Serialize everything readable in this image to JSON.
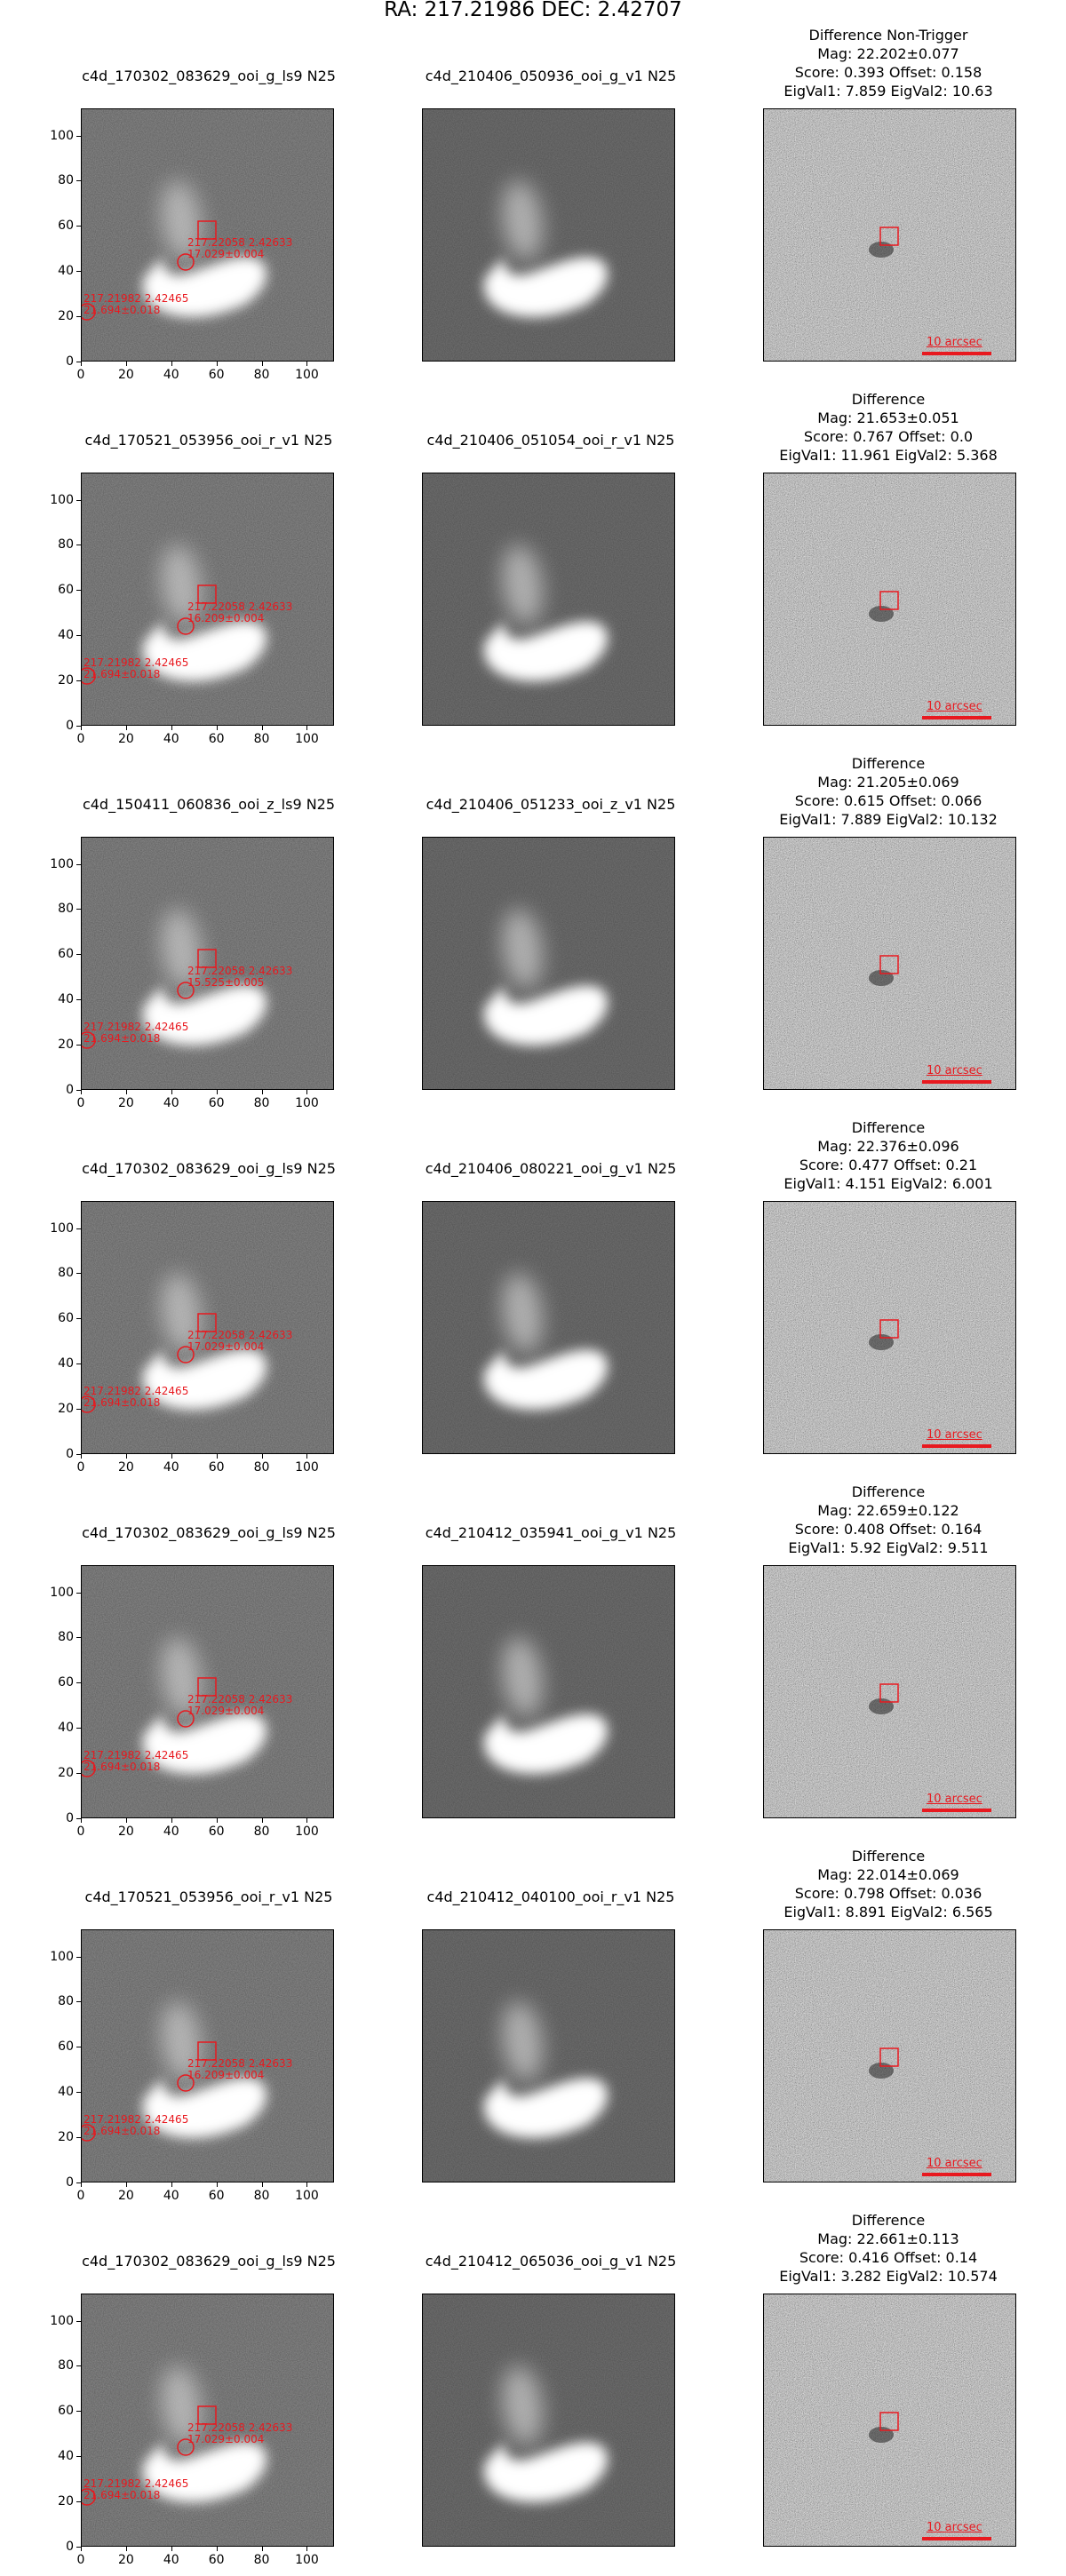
{
  "title": "RA: 217.21986 DEC: 2.42707",
  "colors": {
    "overlay": "#e8191f",
    "axis": "#000000",
    "background": "#ffffff"
  },
  "axis_ticks": {
    "y": [
      "100",
      "80",
      "60",
      "40",
      "20",
      "0"
    ],
    "x": [
      "0",
      "20",
      "40",
      "60",
      "80",
      "100"
    ]
  },
  "overlay": {
    "candidate_coord": "217.22058 2.42633",
    "host_coord": "217.21982 2.42465",
    "host_mag": "21.694±0.018",
    "scale_label": "10 arcsec"
  },
  "rows": [
    {
      "ref_title": "c4d_170302_083629_ooi_g_ls9 N25",
      "new_title": "c4d_210406_050936_ooi_g_v1 N25",
      "diff_line1": "Difference Non-Trigger",
      "diff_line2": "Mag: 22.202±0.077",
      "diff_line3": "Score: 0.393 Offset: 0.158",
      "diff_line4": "EigVal1: 7.859 EigVal2: 10.63",
      "cand_mag": "17.029±0.004"
    },
    {
      "ref_title": "c4d_170521_053956_ooi_r_v1 N25",
      "new_title": "c4d_210406_051054_ooi_r_v1 N25",
      "diff_line1": "Difference",
      "diff_line2": "Mag: 21.653±0.051",
      "diff_line3": "Score: 0.767 Offset: 0.0",
      "diff_line4": "EigVal1: 11.961 EigVal2: 5.368",
      "cand_mag": "16.209±0.004"
    },
    {
      "ref_title": "c4d_150411_060836_ooi_z_ls9 N25",
      "new_title": "c4d_210406_051233_ooi_z_v1 N25",
      "diff_line1": "Difference",
      "diff_line2": "Mag: 21.205±0.069",
      "diff_line3": "Score: 0.615 Offset: 0.066",
      "diff_line4": "EigVal1: 7.889 EigVal2: 10.132",
      "cand_mag": "15.525±0.005"
    },
    {
      "ref_title": "c4d_170302_083629_ooi_g_ls9 N25",
      "new_title": "c4d_210406_080221_ooi_g_v1 N25",
      "diff_line1": "Difference",
      "diff_line2": "Mag: 22.376±0.096",
      "diff_line3": "Score: 0.477 Offset: 0.21",
      "diff_line4": "EigVal1: 4.151 EigVal2: 6.001",
      "cand_mag": "17.029±0.004"
    },
    {
      "ref_title": "c4d_170302_083629_ooi_g_ls9 N25",
      "new_title": "c4d_210412_035941_ooi_g_v1 N25",
      "diff_line1": "Difference",
      "diff_line2": "Mag: 22.659±0.122",
      "diff_line3": "Score: 0.408 Offset: 0.164",
      "diff_line4": "EigVal1: 5.92 EigVal2: 9.511",
      "cand_mag": "17.029±0.004"
    },
    {
      "ref_title": "c4d_170521_053956_ooi_r_v1 N25",
      "new_title": "c4d_210412_040100_ooi_r_v1 N25",
      "diff_line1": "Difference",
      "diff_line2": "Mag: 22.014±0.069",
      "diff_line3": "Score: 0.798 Offset: 0.036",
      "diff_line4": "EigVal1: 8.891 EigVal2: 6.565",
      "cand_mag": "16.209±0.004"
    },
    {
      "ref_title": "c4d_170302_083629_ooi_g_ls9 N25",
      "new_title": "c4d_210412_065036_ooi_g_v1 N25",
      "diff_line1": "Difference",
      "diff_line2": "Mag: 22.661±0.113",
      "diff_line3": "Score: 0.416 Offset: 0.14",
      "diff_line4": "EigVal1: 3.282 EigVal2: 10.574",
      "cand_mag": "17.029±0.004"
    }
  ]
}
